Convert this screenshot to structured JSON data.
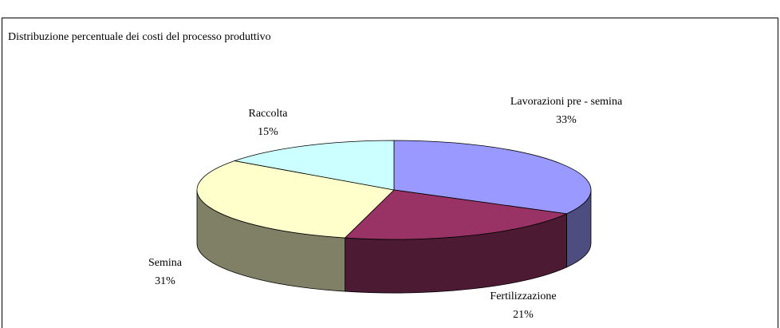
{
  "chart_data": {
    "type": "pie3d",
    "title": "Distribuzione percentuale dei costi  del processo produttivo",
    "categories": [
      "Lavorazioni pre - semina",
      "Fertilizzazione",
      "Semina",
      "Raccolta"
    ],
    "values": [
      33,
      21,
      31,
      15
    ],
    "value_labels": [
      "33%",
      "21%",
      "31%",
      "15%"
    ],
    "colors": [
      "#9999ff",
      "#993366",
      "#ffffcc",
      "#ccffff"
    ],
    "side_colors": [
      "#4d4d80",
      "#4d1a33",
      "#808066",
      "#668080"
    ]
  }
}
